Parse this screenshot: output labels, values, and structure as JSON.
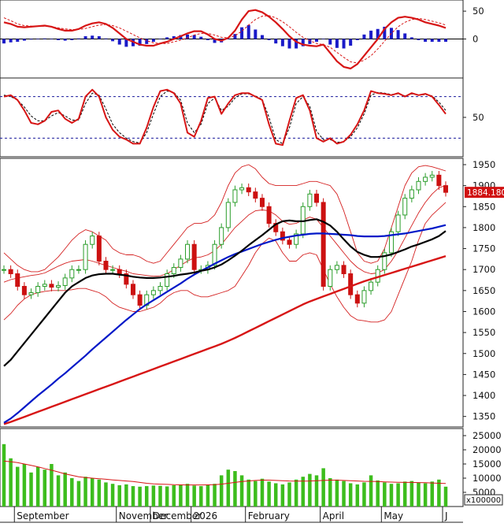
{
  "chart_data": {
    "type": "line",
    "panels": {
      "macd": {
        "ylim": [
          -70,
          70
        ],
        "y_ticks": [
          50,
          0
        ],
        "line": [
          30,
          27,
          22,
          21,
          22,
          23,
          24,
          22,
          18,
          15,
          15,
          18,
          24,
          28,
          30,
          27,
          20,
          10,
          0,
          -5,
          -10,
          -12,
          -12,
          -8,
          -5,
          0,
          5,
          10,
          14,
          14,
          8,
          0,
          -3,
          2,
          15,
          35,
          50,
          52,
          48,
          40,
          30,
          18,
          5,
          -5,
          -10,
          -12,
          -13,
          -10,
          -25,
          -40,
          -50,
          -53,
          -45,
          -30,
          -15,
          0,
          18,
          30,
          38,
          40,
          38,
          35,
          30,
          27,
          24,
          20
        ],
        "signal": [
          38,
          33,
          27,
          24,
          23,
          23,
          23,
          22,
          20,
          18,
          17,
          17,
          19,
          22,
          25,
          26,
          24,
          20,
          14,
          8,
          2,
          -3,
          -7,
          -8,
          -8,
          -5,
          -2,
          2,
          7,
          10,
          10,
          7,
          3,
          2,
          6,
          14,
          25,
          35,
          41,
          42,
          38,
          31,
          22,
          12,
          3,
          -3,
          -8,
          -10,
          -15,
          -24,
          -33,
          -41,
          -43,
          -38,
          -30,
          -18,
          -4,
          10,
          22,
          30,
          35,
          37,
          35,
          32,
          29,
          25
        ],
        "histogram": [
          -8,
          -6,
          -5,
          -3,
          -1,
          0,
          1,
          0,
          -2,
          -3,
          -2,
          1,
          5,
          6,
          5,
          1,
          -4,
          -10,
          -14,
          -13,
          -12,
          -9,
          -5,
          0,
          3,
          5,
          7,
          8,
          7,
          4,
          -2,
          -7,
          -6,
          0,
          9,
          21,
          25,
          17,
          7,
          -2,
          -8,
          -13,
          -17,
          -17,
          -13,
          -9,
          -5,
          0,
          -10,
          -16,
          -17,
          -12,
          -2,
          8,
          15,
          18,
          22,
          20,
          16,
          10,
          3,
          -2,
          -5,
          -5,
          -5,
          -5
        ]
      },
      "stochastic": {
        "ylim": [
          0,
          100
        ],
        "y_ticks": [
          50
        ],
        "overbought": 80,
        "oversold": 20,
        "k": [
          80,
          82,
          75,
          60,
          42,
          40,
          45,
          58,
          60,
          48,
          42,
          48,
          80,
          90,
          80,
          50,
          32,
          22,
          18,
          12,
          12,
          35,
          65,
          88,
          90,
          85,
          70,
          28,
          22,
          45,
          78,
          80,
          55,
          70,
          82,
          85,
          85,
          80,
          75,
          40,
          12,
          10,
          45,
          78,
          82,
          60,
          20,
          15,
          20,
          12,
          15,
          25,
          40,
          60,
          88,
          85,
          84,
          82,
          85,
          80,
          85,
          82,
          84,
          80,
          68,
          55
        ],
        "d": [
          82,
          80,
          75,
          65,
          52,
          45,
          45,
          52,
          57,
          52,
          46,
          46,
          70,
          85,
          82,
          62,
          40,
          28,
          20,
          15,
          13,
          28,
          55,
          80,
          88,
          86,
          75,
          42,
          28,
          40,
          70,
          78,
          60,
          66,
          78,
          84,
          84,
          81,
          76,
          50,
          18,
          12,
          35,
          70,
          80,
          66,
          30,
          18,
          18,
          14,
          15,
          22,
          35,
          55,
          82,
          86,
          85,
          83,
          84,
          81,
          84,
          82,
          83,
          81,
          72,
          60
        ]
      },
      "price": {
        "ylim": [
          1325,
          1965
        ],
        "y_ticks": [
          1950,
          1900,
          1850,
          1800,
          1750,
          1700,
          1650,
          1600,
          1550,
          1500,
          1450,
          1400,
          1350
        ],
        "last_price_label": "1884.180",
        "close": [
          1700,
          1690,
          1660,
          1640,
          1645,
          1660,
          1665,
          1658,
          1662,
          1680,
          1700,
          1700,
          1760,
          1780,
          1720,
          1700,
          1700,
          1690,
          1665,
          1640,
          1615,
          1640,
          1650,
          1660,
          1690,
          1705,
          1725,
          1760,
          1700,
          1700,
          1710,
          1760,
          1800,
          1860,
          1890,
          1895,
          1885,
          1870,
          1850,
          1810,
          1790,
          1770,
          1760,
          1785,
          1850,
          1880,
          1860,
          1660,
          1700,
          1710,
          1690,
          1640,
          1620,
          1650,
          1670,
          1700,
          1740,
          1790,
          1830,
          1870,
          1890,
          1910,
          1920,
          1925,
          1900,
          1884
        ],
        "ma20": [
          1670,
          1676,
          1680,
          1683,
          1686,
          1688,
          1692,
          1700,
          1708,
          1715,
          1720,
          1722,
          1724,
          1720,
          1715,
          1710,
          1705,
          1700,
          1696,
          1690,
          1688,
          1686,
          1684,
          1685,
          1690,
          1700,
          1710,
          1720,
          1728,
          1730,
          1735,
          1745,
          1760,
          1780,
          1800,
          1815,
          1830,
          1840,
          1842,
          1840,
          1830,
          1815,
          1808,
          1810,
          1818,
          1825,
          1820,
          1800,
          1780,
          1760,
          1740,
          1720,
          1705,
          1695,
          1690,
          1692,
          1700,
          1720,
          1745,
          1775,
          1805,
          1835,
          1860,
          1880,
          1895,
          1900
        ],
        "bb_upper": [
          1740,
          1725,
          1710,
          1700,
          1695,
          1695,
          1700,
          1715,
          1730,
          1750,
          1770,
          1785,
          1795,
          1790,
          1780,
          1770,
          1750,
          1740,
          1735,
          1735,
          1730,
          1720,
          1715,
          1720,
          1740,
          1760,
          1780,
          1800,
          1810,
          1810,
          1815,
          1830,
          1860,
          1900,
          1930,
          1945,
          1950,
          1940,
          1920,
          1905,
          1900,
          1900,
          1900,
          1900,
          1905,
          1910,
          1910,
          1905,
          1900,
          1880,
          1840,
          1790,
          1740,
          1720,
          1715,
          1720,
          1750,
          1800,
          1850,
          1900,
          1930,
          1945,
          1948,
          1945,
          1940,
          1935
        ],
        "bb_lower": [
          1580,
          1595,
          1615,
          1630,
          1640,
          1645,
          1648,
          1650,
          1650,
          1650,
          1652,
          1655,
          1655,
          1650,
          1645,
          1635,
          1620,
          1610,
          1605,
          1600,
          1600,
          1605,
          1610,
          1620,
          1635,
          1645,
          1650,
          1650,
          1640,
          1635,
          1635,
          1640,
          1645,
          1650,
          1660,
          1685,
          1710,
          1740,
          1762,
          1775,
          1768,
          1740,
          1720,
          1720,
          1735,
          1740,
          1735,
          1700,
          1665,
          1635,
          1610,
          1590,
          1580,
          1578,
          1575,
          1575,
          1580,
          1600,
          1640,
          1680,
          1720,
          1770,
          1810,
          1830,
          1845,
          1860
        ],
        "ma50": [
          1470,
          1485,
          1505,
          1525,
          1545,
          1565,
          1585,
          1605,
          1625,
          1645,
          1660,
          1670,
          1680,
          1686,
          1689,
          1690,
          1690,
          1688,
          1686,
          1683,
          1681,
          1680,
          1680,
          1681,
          1683,
          1685,
          1688,
          1690,
          1693,
          1697,
          1700,
          1705,
          1712,
          1722,
          1733,
          1745,
          1758,
          1770,
          1782,
          1795,
          1808,
          1815,
          1817,
          1815,
          1815,
          1818,
          1820,
          1814,
          1805,
          1790,
          1772,
          1755,
          1742,
          1735,
          1730,
          1730,
          1732,
          1736,
          1742,
          1748,
          1755,
          1760,
          1766,
          1772,
          1780,
          1792
        ],
        "ma100": [
          1335,
          1345,
          1358,
          1372,
          1386,
          1400,
          1413,
          1426,
          1440,
          1453,
          1467,
          1481,
          1495,
          1510,
          1524,
          1538,
          1552,
          1566,
          1580,
          1593,
          1606,
          1617,
          1627,
          1637,
          1647,
          1657,
          1667,
          1678,
          1688,
          1697,
          1705,
          1714,
          1722,
          1730,
          1737,
          1743,
          1749,
          1755,
          1761,
          1766,
          1771,
          1775,
          1778,
          1781,
          1783,
          1785,
          1786,
          1786,
          1785,
          1784,
          1783,
          1782,
          1780,
          1779,
          1779,
          1779,
          1780,
          1782,
          1784,
          1786,
          1789,
          1792,
          1795,
          1798,
          1802,
          1806
        ],
        "ma200": [
          1332,
          1337,
          1343,
          1349,
          1355,
          1361,
          1367,
          1373,
          1379,
          1385,
          1391,
          1397,
          1403,
          1409,
          1415,
          1421,
          1427,
          1433,
          1439,
          1445,
          1451,
          1457,
          1463,
          1469,
          1475,
          1481,
          1487,
          1493,
          1499,
          1505,
          1511,
          1517,
          1523,
          1530,
          1537,
          1545,
          1553,
          1561,
          1569,
          1577,
          1585,
          1593,
          1601,
          1609,
          1617,
          1624,
          1630,
          1636,
          1642,
          1648,
          1654,
          1660,
          1666,
          1672,
          1677,
          1682,
          1687,
          1692,
          1697,
          1702,
          1707,
          1712,
          1717,
          1722,
          1727,
          1732
        ]
      },
      "volume": {
        "ylim": [
          0,
          27500
        ],
        "y_ticks": [
          25000,
          20000,
          15000,
          10000,
          5000
        ],
        "unit_label": "x100000",
        "bars": [
          22000,
          17000,
          14000,
          15000,
          12000,
          14000,
          13000,
          15000,
          11000,
          12000,
          10000,
          9000,
          10500,
          10000,
          9500,
          8500,
          8000,
          7500,
          7800,
          7200,
          7000,
          7200,
          7400,
          7300,
          7100,
          7500,
          7700,
          8000,
          7400,
          7200,
          7600,
          8000,
          11000,
          13000,
          12500,
          11000,
          9500,
          9000,
          9800,
          8800,
          8200,
          7800,
          8500,
          9500,
          10500,
          11500,
          11000,
          13500,
          10000,
          9500,
          9000,
          8200,
          7800,
          8500,
          11000,
          9200,
          8500,
          8000,
          8200,
          8800,
          9000,
          8500,
          8200,
          8800,
          9500,
          7000
        ],
        "ma": [
          16000,
          15800,
          15500,
          15000,
          14500,
          14000,
          13400,
          12800,
          12200,
          11500,
          11000,
          10500,
          10200,
          10000,
          9800,
          9600,
          9400,
          9200,
          9000,
          8800,
          8500,
          8200,
          8000,
          7900,
          7800,
          7700,
          7650,
          7600,
          7600,
          7600,
          7650,
          7700,
          7900,
          8200,
          8500,
          8800,
          9000,
          9200,
          9300,
          9300,
          9200,
          9100,
          9000,
          8950,
          8950,
          9000,
          9100,
          9200,
          9300,
          9300,
          9200,
          9100,
          9000,
          8900,
          8850,
          8800,
          8700,
          8600,
          8550,
          8500,
          8500,
          8450,
          8400,
          8300,
          8200,
          8100
        ]
      }
    },
    "x_month_labels": [
      {
        "label": "September",
        "index": 2
      },
      {
        "label": "November",
        "index": 17
      },
      {
        "label": "December",
        "index": 22
      },
      {
        "label": "2026",
        "index": 28
      },
      {
        "label": "February",
        "index": 36
      },
      {
        "label": "April",
        "index": 47
      },
      {
        "label": "May",
        "index": 56
      },
      {
        "label": "J",
        "index": 65
      }
    ],
    "colors": {
      "price_up": "#2a9d2a",
      "price_down": "#cc1111",
      "bollinger": "#d42020",
      "ma20": "#000000",
      "ma50": "#0018c8",
      "ma200": "#d71515",
      "macd": "#d71515",
      "macd_hist": "#1a1ac8",
      "volume": "#3dbd1d",
      "stoch_levels": "#1a1a9c"
    }
  }
}
